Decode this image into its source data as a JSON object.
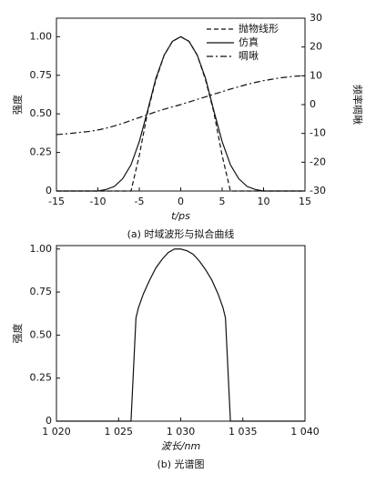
{
  "chart_data": [
    {
      "type": "line",
      "caption": "(a) 时域波形与拟合曲线",
      "x_label": "t/ps",
      "y_label": "强度",
      "y2_label": "频率啁啾",
      "xlim": [
        -15,
        15
      ],
      "xticks": [
        -15,
        -10,
        -5,
        0,
        5,
        10,
        15
      ],
      "ylim": [
        0,
        1.12
      ],
      "yticks": [
        0,
        0.25,
        {
          "value": 0.5,
          "label": "0.50"
        },
        0.75,
        {
          "value": 1,
          "label": "1.00"
        }
      ],
      "y2lim": [
        -30,
        30
      ],
      "y2ticks": [
        -30,
        -20,
        -10,
        0,
        10,
        20,
        30
      ],
      "legend": "upper right",
      "x": [
        -15,
        -14,
        -13,
        -12,
        -11,
        -10,
        -9,
        -8,
        -7,
        -6,
        -5,
        -4,
        -3,
        -2,
        -1,
        0,
        1,
        2,
        3,
        4,
        5,
        6,
        7,
        8,
        9,
        10,
        11,
        12,
        13,
        14,
        15
      ],
      "series": [
        {
          "name": "抛物线形",
          "color": "#111",
          "style": "dashed",
          "values": [
            0,
            0,
            0,
            0,
            0,
            0,
            0,
            0,
            0,
            0,
            0.23,
            0.51,
            0.72,
            0.88,
            0.97,
            1,
            0.97,
            0.88,
            0.72,
            0.51,
            0.23,
            0,
            0,
            0,
            0,
            0,
            0,
            0,
            0,
            0,
            0
          ]
        },
        {
          "name": "仿真",
          "color": "#111",
          "style": "solid",
          "values": [
            0,
            0,
            0,
            0,
            0,
            0,
            0.01,
            0.03,
            0.08,
            0.17,
            0.32,
            0.52,
            0.73,
            0.88,
            0.97,
            1,
            0.97,
            0.88,
            0.73,
            0.52,
            0.32,
            0.17,
            0.08,
            0.03,
            0.01,
            0,
            0,
            0,
            0,
            0,
            0
          ]
        },
        {
          "name": "啁啾",
          "color": "#111",
          "style": "dashdot",
          "axis": "y2",
          "values": [
            -10.4,
            -10.2,
            -9.9,
            -9.6,
            -9.3,
            -8.8,
            -8.2,
            -7.4,
            -6.5,
            -5.5,
            -4.5,
            -3.5,
            -2.5,
            -1.6,
            -0.8,
            0,
            0.9,
            1.8,
            2.7,
            3.6,
            4.5,
            5.4,
            6.2,
            7,
            7.7,
            8.3,
            8.8,
            9.3,
            9.6,
            9.9,
            10
          ]
        }
      ]
    },
    {
      "type": "line",
      "caption": "(b) 光谱图",
      "x_label": "波长/nm",
      "y_label": "强度",
      "xlim": [
        1020,
        1040
      ],
      "xticks": [
        {
          "value": 1020,
          "label": "1 020"
        },
        {
          "value": 1025,
          "label": "1 025"
        },
        {
          "value": 1030,
          "label": "1 030"
        },
        {
          "value": 1035,
          "label": "1 035"
        },
        {
          "value": 1040,
          "label": "1 040"
        }
      ],
      "ylim": [
        0,
        1.02
      ],
      "yticks": [
        0,
        0.25,
        {
          "value": 0.5,
          "label": "0.50"
        },
        0.75,
        {
          "value": 1,
          "label": "1.00"
        }
      ],
      "color": "#111",
      "x": [
        1020,
        1026,
        1026.2,
        1026.4,
        1026.6,
        1027,
        1027.5,
        1028,
        1028.5,
        1029,
        1029.5,
        1030,
        1030.5,
        1031,
        1031.5,
        1032,
        1032.5,
        1033,
        1033.4,
        1033.6,
        1033.8,
        1034,
        1040
      ],
      "values": [
        0,
        0,
        0.3,
        0.6,
        0.66,
        0.74,
        0.82,
        0.89,
        0.94,
        0.98,
        1,
        1,
        0.99,
        0.97,
        0.93,
        0.88,
        0.82,
        0.74,
        0.66,
        0.6,
        0.3,
        0,
        0
      ]
    }
  ]
}
